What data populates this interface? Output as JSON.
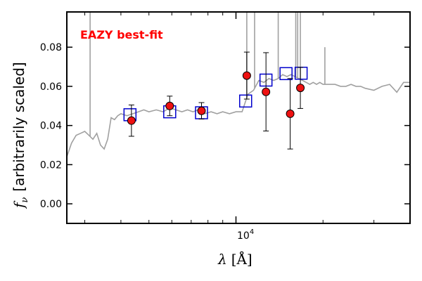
{
  "chart_data": {
    "type": "scatter",
    "title": "",
    "annotation": "EAZY best-fit",
    "annotation_color": "#ff0000",
    "xlabel_var": "λ",
    "xlabel_unit": "[Å]",
    "ylabel_var": "f",
    "ylabel_sub": "ν",
    "ylabel_text": "[arbitrarily scaled]",
    "x_scale": "log",
    "xlim": [
      2600,
      40000
    ],
    "ylim": [
      -0.01,
      0.098
    ],
    "y_ticks": [
      0.0,
      0.02,
      0.04,
      0.06,
      0.08
    ],
    "y_tick_labels": [
      "0.00",
      "0.02",
      "0.04",
      "0.06",
      "0.08"
    ],
    "x_major_ticks": [
      10000
    ],
    "x_tick_base": "10",
    "x_tick_exp": "4",
    "x_minor_ticks": [
      3000,
      4000,
      5000,
      6000,
      7000,
      8000,
      9000,
      20000,
      30000,
      40000
    ],
    "grid": false,
    "colors": {
      "template": "#a0a0a0",
      "model_box": "#0000cc",
      "observed_fill": "#ee1111",
      "observed_edge": "#000000",
      "errorbar": "#000000"
    },
    "series": [
      {
        "kind": "observed",
        "x": [
          4350,
          5900,
          7600,
          10900,
          12700,
          15400,
          16700
        ],
        "y": [
          0.0425,
          0.05,
          0.0475,
          0.0655,
          0.0572,
          0.046,
          0.0592
        ],
        "yerr_low": [
          0.008,
          0.005,
          0.0042,
          0.012,
          0.02,
          0.018,
          0.0105
        ],
        "yerr_high": [
          0.008,
          0.005,
          0.0042,
          0.012,
          0.02,
          0.018,
          0.0105
        ]
      },
      {
        "kind": "model",
        "x": [
          4300,
          5900,
          7600,
          10800,
          12700,
          14900,
          16800
        ],
        "y": [
          0.0455,
          0.047,
          0.0465,
          0.0525,
          0.0632,
          0.0665,
          0.0667
        ]
      },
      {
        "kind": "template",
        "x": [
          2600,
          2700,
          2800,
          2900,
          3000,
          3100,
          3200,
          3300,
          3400,
          3500,
          3600,
          3700,
          3800,
          3900,
          4000,
          4200,
          4400,
          4600,
          4800,
          5000,
          5300,
          5600,
          5900,
          6200,
          6500,
          6800,
          7100,
          7400,
          7800,
          8200,
          8600,
          9000,
          9500,
          10000,
          10500,
          11000,
          11500,
          12000,
          12500,
          13000,
          13500,
          14000,
          14500,
          15000,
          15500,
          16000,
          16500,
          17000,
          17500,
          18000,
          18500,
          19000,
          19500,
          20000,
          21000,
          22000,
          23000,
          24000,
          25000,
          26000,
          27000,
          28000,
          30000,
          32000,
          34000,
          36000,
          38000,
          40000
        ],
        "y": [
          0.024,
          0.031,
          0.035,
          0.036,
          0.037,
          0.035,
          0.033,
          0.036,
          0.03,
          0.028,
          0.033,
          0.044,
          0.043,
          0.045,
          0.046,
          0.045,
          0.046,
          0.047,
          0.048,
          0.047,
          0.048,
          0.047,
          0.049,
          0.048,
          0.047,
          0.048,
          0.047,
          0.048,
          0.046,
          0.047,
          0.046,
          0.047,
          0.046,
          0.047,
          0.047,
          0.056,
          0.058,
          0.063,
          0.062,
          0.064,
          0.063,
          0.064,
          0.066,
          0.065,
          0.066,
          0.065,
          0.064,
          0.063,
          0.062,
          0.061,
          0.062,
          0.061,
          0.062,
          0.061,
          0.061,
          0.061,
          0.06,
          0.06,
          0.061,
          0.06,
          0.06,
          0.059,
          0.058,
          0.06,
          0.061,
          0.057,
          0.062,
          0.062
        ]
      },
      {
        "kind": "template_spikes",
        "x": [
          3130,
          10900,
          11600,
          14000,
          16100,
          16350,
          16700,
          20300
        ],
        "y": [
          0.098,
          0.098,
          0.098,
          0.098,
          0.098,
          0.098,
          0.098,
          0.08
        ]
      }
    ]
  }
}
